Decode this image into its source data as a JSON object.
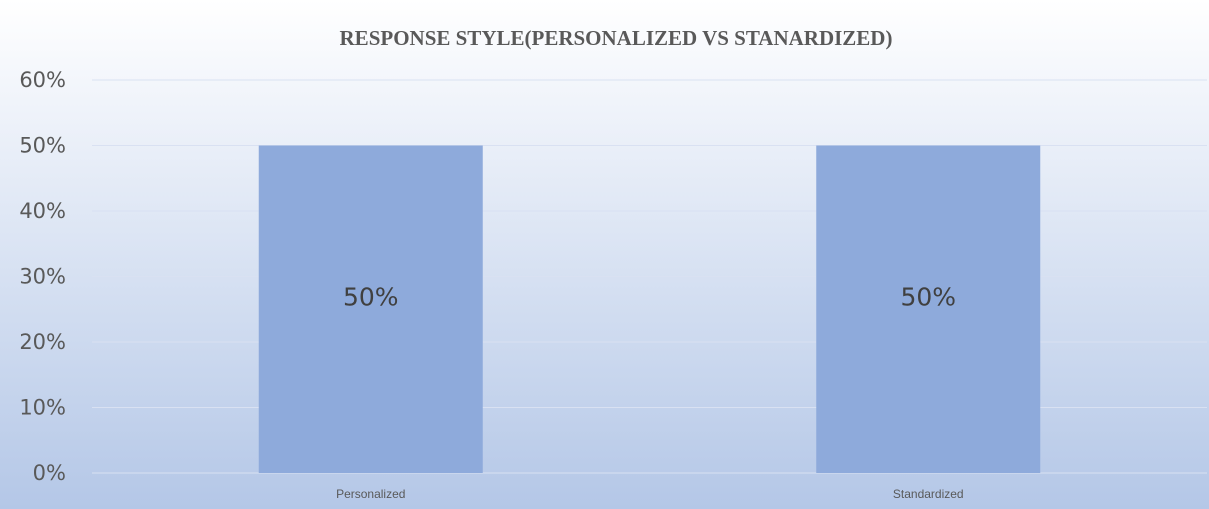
{
  "chart_data": {
    "type": "bar",
    "title": "RESPONSE STYLE(PERSONALIZED VS STANARDIZED)",
    "categories": [
      "Personalized",
      "Standardized"
    ],
    "values": [
      0.5,
      0.5
    ],
    "data_labels": [
      "50%",
      "50%"
    ],
    "xlabel": "",
    "ylabel": "",
    "ylim": [
      0,
      0.6
    ],
    "yticks": [
      0,
      0.1,
      0.2,
      0.3,
      0.4,
      0.5,
      0.6
    ],
    "ytick_labels": [
      "0%",
      "10%",
      "20%",
      "30%",
      "40%",
      "50%",
      "60%"
    ],
    "grid": true,
    "legend": "none",
    "bar_color": "#8eaadb",
    "background_gradient": [
      "#ffffff",
      "#b4c7e7"
    ]
  }
}
